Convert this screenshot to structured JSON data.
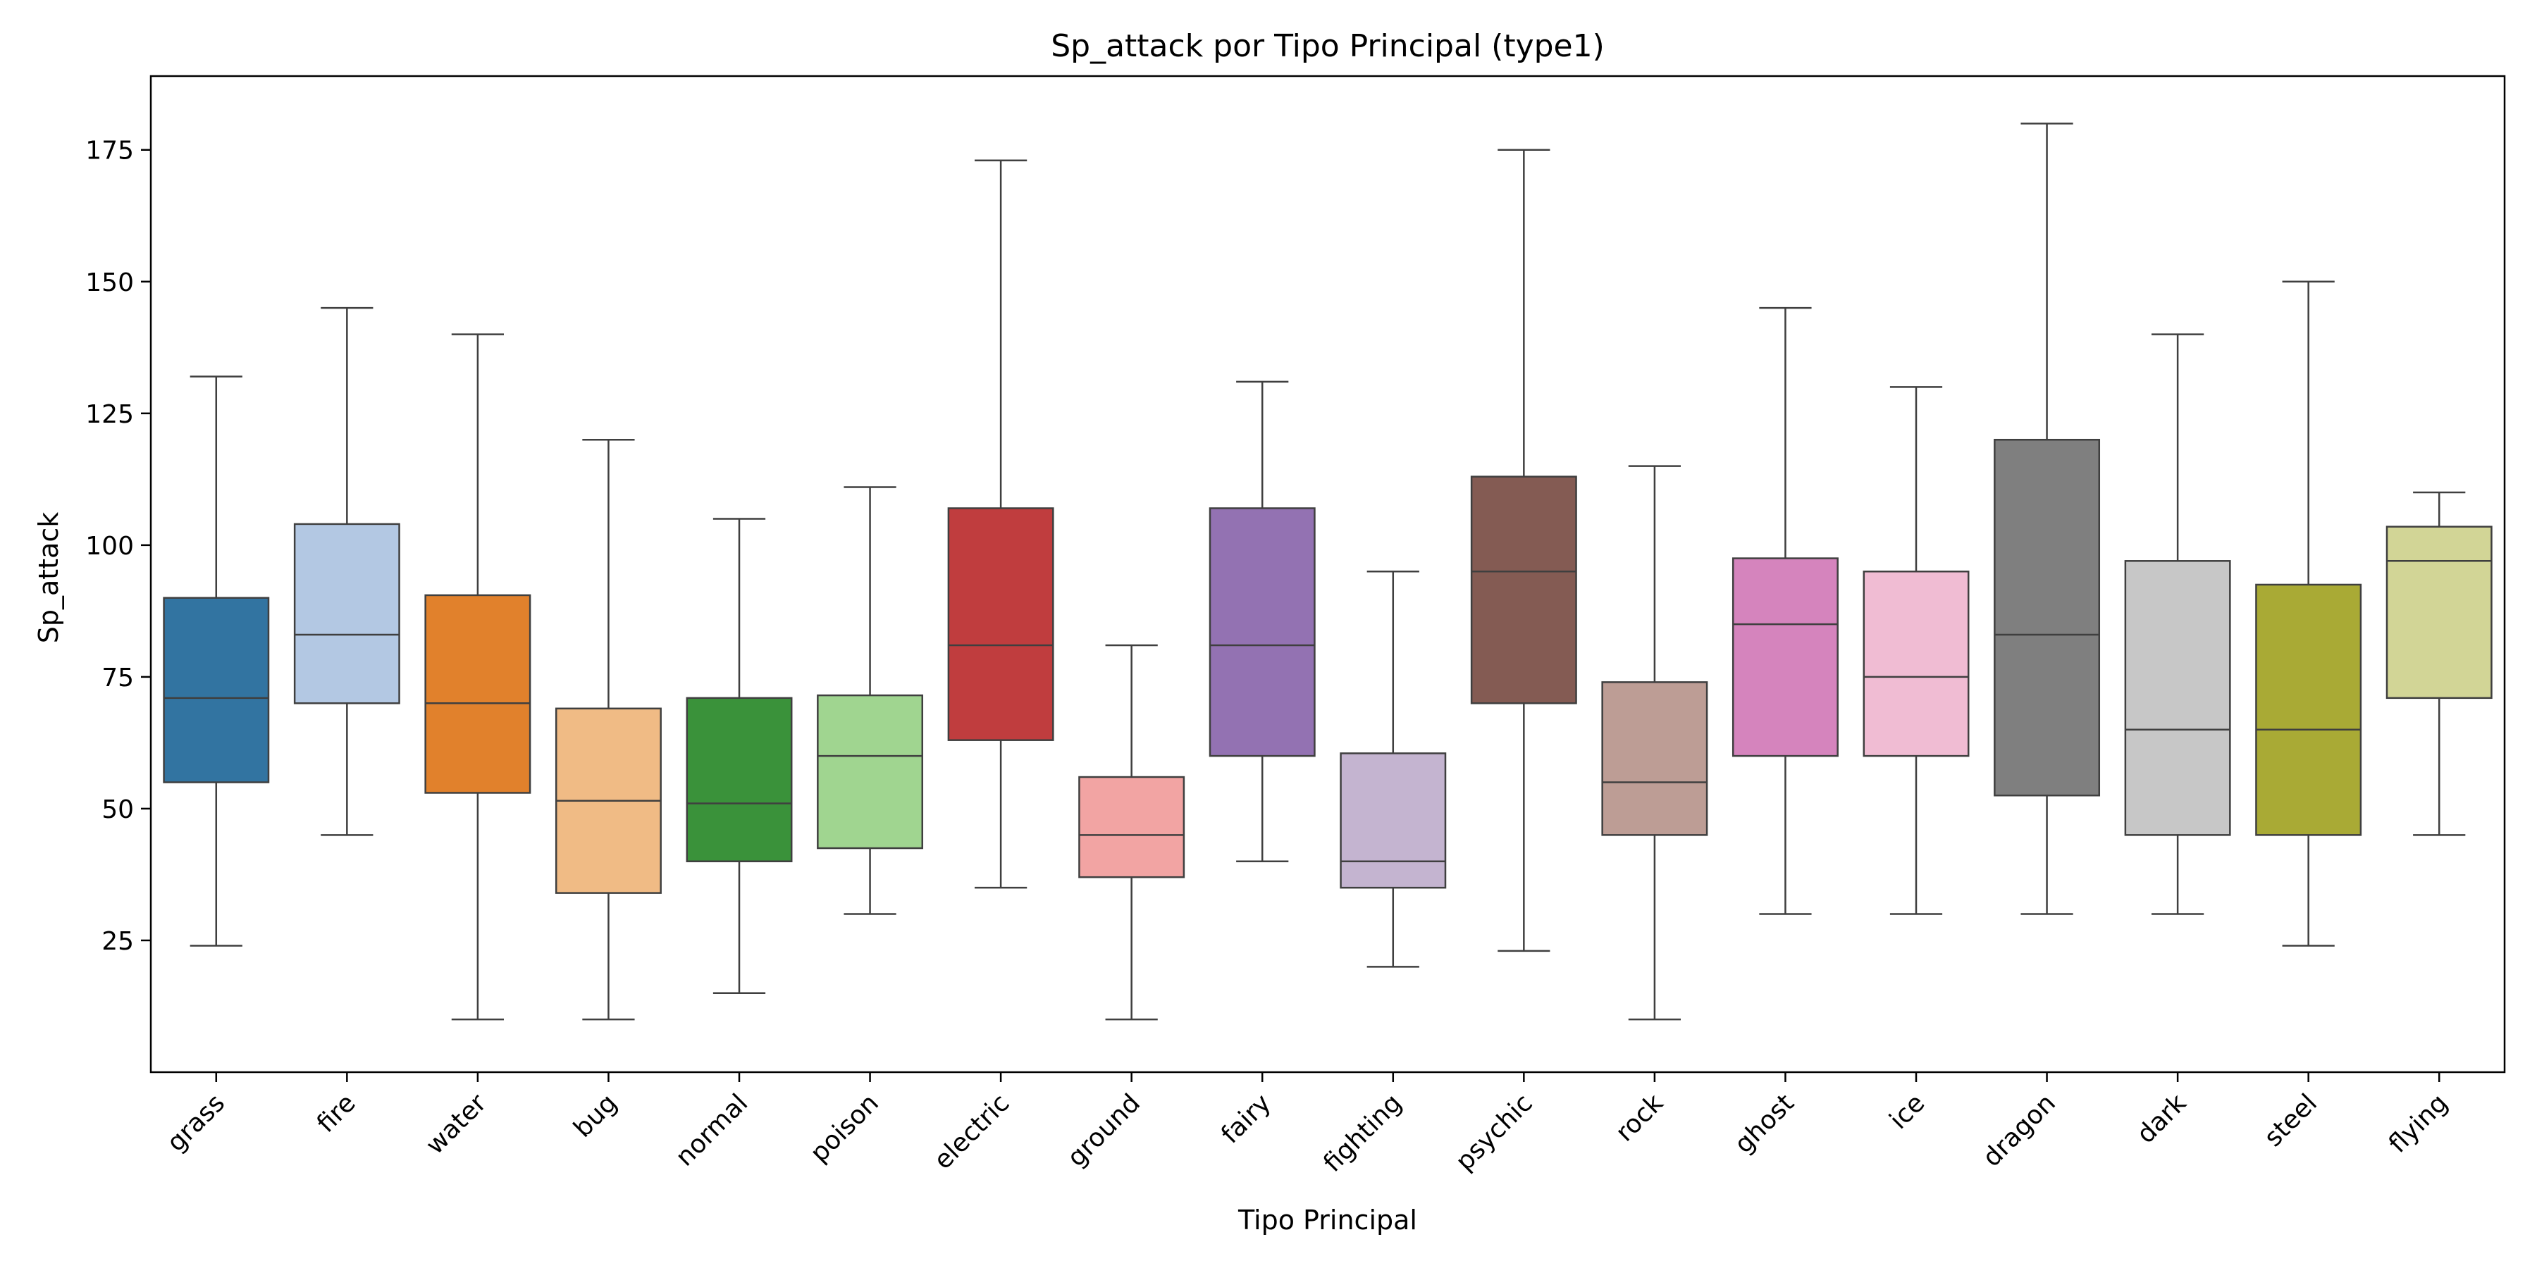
{
  "chart_data": {
    "type": "box",
    "title": "Sp_attack por Tipo Principal (type1)",
    "xlabel": "Tipo Principal",
    "ylabel": "Sp_attack",
    "ylim": [
      0,
      189
    ],
    "yticks": [
      25,
      50,
      75,
      100,
      125,
      150,
      175
    ],
    "grid": false,
    "legend": "none",
    "categories": [
      "grass",
      "fire",
      "water",
      "bug",
      "normal",
      "poison",
      "electric",
      "ground",
      "fairy",
      "fighting",
      "psychic",
      "rock",
      "ghost",
      "ice",
      "dragon",
      "dark",
      "steel",
      "flying"
    ],
    "colors": [
      "#3274a1",
      "#b3c8e3",
      "#e1812c",
      "#f0bb85",
      "#3a923a",
      "#a0d590",
      "#c03d3e",
      "#f2a4a3",
      "#9372b2",
      "#c4b4d0",
      "#845b53",
      "#bd9d95",
      "#d584bd",
      "#f0bcd3",
      "#7f7f7f",
      "#c7c7c7",
      "#a9aa35",
      "#d2d596"
    ],
    "series": [
      {
        "category": "grass",
        "whisker_low": 24,
        "q1": 55,
        "median": 71,
        "q3": 90,
        "whisker_high": 132
      },
      {
        "category": "fire",
        "whisker_low": 45,
        "q1": 70,
        "median": 83,
        "q3": 104,
        "whisker_high": 145
      },
      {
        "category": "water",
        "whisker_low": 10,
        "q1": 53,
        "median": 70,
        "q3": 90.5,
        "whisker_high": 140
      },
      {
        "category": "bug",
        "whisker_low": 10,
        "q1": 34,
        "median": 51.5,
        "q3": 69,
        "whisker_high": 120
      },
      {
        "category": "normal",
        "whisker_low": 15,
        "q1": 40,
        "median": 51,
        "q3": 71,
        "whisker_high": 105
      },
      {
        "category": "poison",
        "whisker_low": 30,
        "q1": 42.5,
        "median": 60,
        "q3": 71.5,
        "whisker_high": 111
      },
      {
        "category": "electric",
        "whisker_low": 35,
        "q1": 63,
        "median": 81,
        "q3": 107,
        "whisker_high": 173
      },
      {
        "category": "ground",
        "whisker_low": 10,
        "q1": 37,
        "median": 45,
        "q3": 56,
        "whisker_high": 81
      },
      {
        "category": "fairy",
        "whisker_low": 40,
        "q1": 60,
        "median": 81,
        "q3": 107,
        "whisker_high": 131
      },
      {
        "category": "fighting",
        "whisker_low": 20,
        "q1": 35,
        "median": 40,
        "q3": 60.5,
        "whisker_high": 95
      },
      {
        "category": "psychic",
        "whisker_low": 23,
        "q1": 70,
        "median": 95,
        "q3": 113,
        "whisker_high": 175
      },
      {
        "category": "rock",
        "whisker_low": 10,
        "q1": 45,
        "median": 55,
        "q3": 74,
        "whisker_high": 115
      },
      {
        "category": "ghost",
        "whisker_low": 30,
        "q1": 60,
        "median": 85,
        "q3": 97.5,
        "whisker_high": 145
      },
      {
        "category": "ice",
        "whisker_low": 30,
        "q1": 60,
        "median": 75,
        "q3": 95,
        "whisker_high": 130
      },
      {
        "category": "dragon",
        "whisker_low": 30,
        "q1": 52.5,
        "median": 83,
        "q3": 120,
        "whisker_high": 180
      },
      {
        "category": "dark",
        "whisker_low": 30,
        "q1": 45,
        "median": 65,
        "q3": 97,
        "whisker_high": 140
      },
      {
        "category": "steel",
        "whisker_low": 24,
        "q1": 45,
        "median": 65,
        "q3": 92.5,
        "whisker_high": 150
      },
      {
        "category": "flying",
        "whisker_low": 45,
        "q1": 71,
        "median": 97,
        "q3": 103.5,
        "whisker_high": 110
      }
    ]
  }
}
